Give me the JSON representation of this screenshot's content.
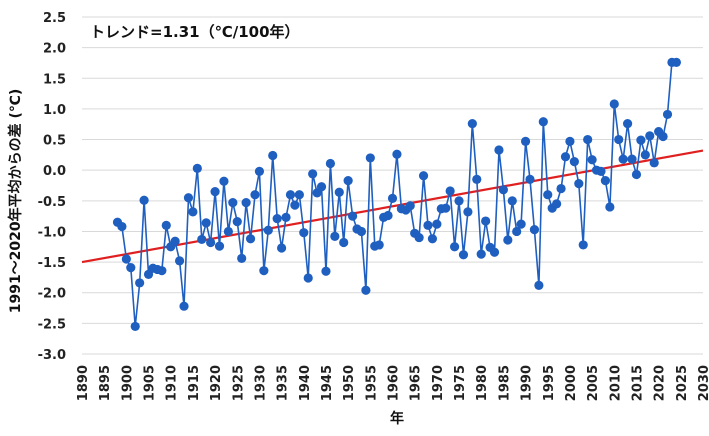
{
  "chart_data": {
    "type": "line",
    "annotation": "トレンド=1.31（℃/100年）",
    "xlabel": "年",
    "ylabel": "1991～2020年平均からの差 (℃)",
    "xlim": [
      1890,
      2030
    ],
    "ylim": [
      -3.0,
      2.5
    ],
    "xticks": [
      1890,
      1895,
      1900,
      1905,
      1910,
      1915,
      1920,
      1925,
      1930,
      1935,
      1940,
      1945,
      1950,
      1955,
      1960,
      1965,
      1970,
      1975,
      1980,
      1985,
      1990,
      1995,
      2000,
      2005,
      2010,
      2015,
      2020,
      2025,
      2030
    ],
    "yticks": [
      "2.5",
      "2.0",
      "1.5",
      "1.0",
      "0.5",
      "0.0",
      "-0.5",
      "-1.0",
      "-1.5",
      "-2.0",
      "-2.5",
      "-3.0"
    ],
    "grid": "horizontal",
    "legend": "none",
    "series_color": "#1f5fbf",
    "trend_color": "#e02020",
    "series": [
      {
        "x": [
          1898,
          1899,
          1900,
          1901,
          1902,
          1903,
          1904,
          1905,
          1906,
          1907,
          1908,
          1909,
          1910,
          1911,
          1912,
          1913,
          1914,
          1915,
          1916,
          1917,
          1918,
          1919,
          1920,
          1921,
          1922,
          1923,
          1924,
          1925,
          1926,
          1927,
          1928,
          1929,
          1930,
          1931,
          1932,
          1933,
          1934,
          1935,
          1936,
          1937,
          1938,
          1939,
          1940,
          1941,
          1942,
          1943,
          1944,
          1945,
          1946,
          1947,
          1948,
          1949,
          1950,
          1951,
          1952,
          1953,
          1954,
          1955,
          1956,
          1957,
          1958,
          1959,
          1960,
          1961,
          1962,
          1963,
          1964,
          1965,
          1966,
          1967,
          1968,
          1969,
          1970,
          1971,
          1972,
          1973,
          1974,
          1975,
          1976,
          1977,
          1978,
          1979,
          1980,
          1981,
          1982,
          1983,
          1984,
          1985,
          1986,
          1987,
          1988,
          1989,
          1990,
          1991,
          1992,
          1993,
          1994,
          1995,
          1996,
          1997,
          1998,
          1999,
          2000,
          2001,
          2002,
          2003,
          2004,
          2005,
          2006,
          2007,
          2008,
          2009,
          2010,
          2011,
          2012,
          2013,
          2014,
          2015,
          2016,
          2017,
          2018,
          2019,
          2020,
          2021,
          2022,
          2023,
          2024
        ],
        "values": [
          -0.85,
          -0.92,
          -1.45,
          -1.59,
          -2.55,
          -1.84,
          -0.49,
          -1.7,
          -1.6,
          -1.62,
          -1.64,
          -0.9,
          -1.25,
          -1.16,
          -1.48,
          -2.22,
          -0.45,
          -0.68,
          0.03,
          -1.13,
          -0.86,
          -1.18,
          -0.35,
          -1.24,
          -0.18,
          -1.0,
          -0.53,
          -0.84,
          -1.44,
          -0.53,
          -1.12,
          -0.4,
          -0.02,
          -1.64,
          -0.98,
          0.24,
          -0.79,
          -1.27,
          -0.77,
          -0.4,
          -0.57,
          -0.4,
          -1.02,
          -1.76,
          -0.06,
          -0.37,
          -0.27,
          -1.65,
          0.11,
          -1.08,
          -0.36,
          -1.18,
          -0.17,
          -0.75,
          -0.96,
          -1.0,
          -1.96,
          0.2,
          -1.24,
          -1.22,
          -0.77,
          -0.74,
          -0.46,
          0.26,
          -0.63,
          -0.65,
          -0.58,
          -1.03,
          -1.1,
          -0.09,
          -0.9,
          -1.12,
          -0.88,
          -0.63,
          -0.62,
          -0.34,
          -1.25,
          -0.5,
          -1.38,
          -0.68,
          0.76,
          -0.15,
          -1.37,
          -0.83,
          -1.26,
          -1.34,
          0.33,
          -0.32,
          -1.14,
          -0.5,
          -1.0,
          -0.88,
          0.47,
          -0.15,
          -0.97,
          -1.88,
          0.79,
          -0.4,
          -0.62,
          -0.55,
          -0.3,
          0.22,
          0.47,
          0.14,
          -0.22,
          -1.22,
          0.5,
          0.17,
          0.0,
          -0.02,
          -0.17,
          -0.6,
          1.08,
          0.5,
          0.18,
          0.76,
          0.18,
          -0.07,
          0.49,
          0.25,
          0.56,
          0.12,
          0.63,
          0.55,
          0.91,
          1.76,
          1.76
        ]
      }
    ],
    "trend": {
      "x": [
        1890,
        2030
      ],
      "values": [
        -1.5,
        0.32
      ]
    }
  }
}
